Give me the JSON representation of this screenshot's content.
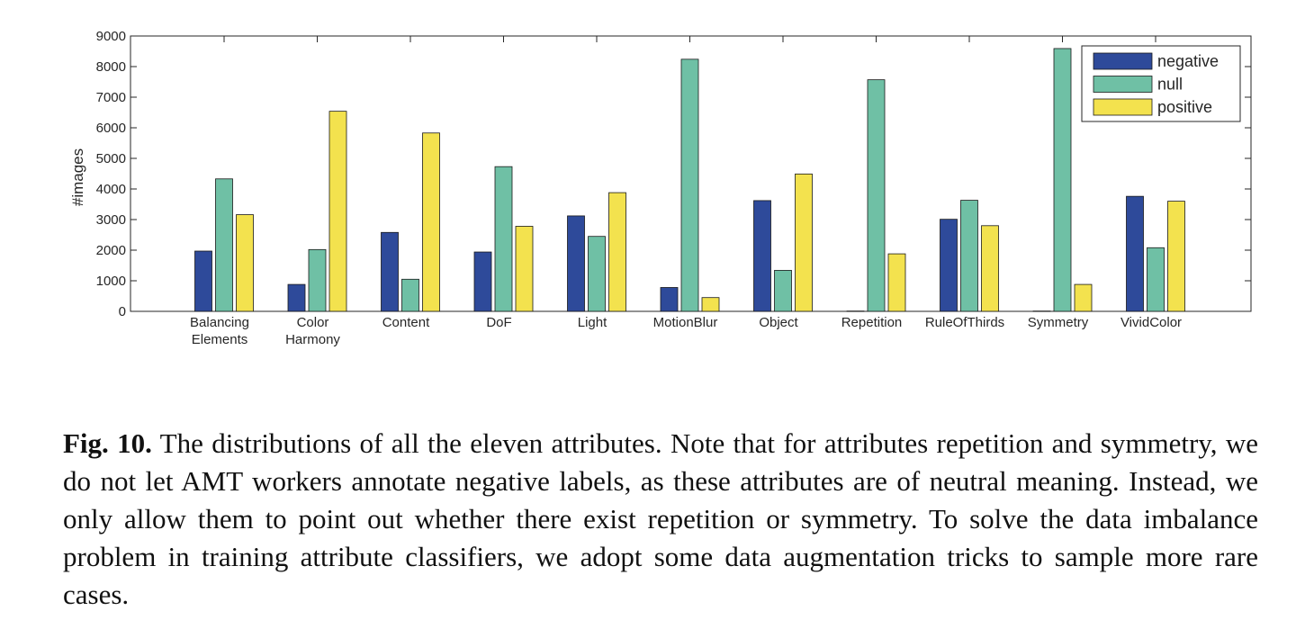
{
  "chart_data": {
    "type": "bar",
    "categories": [
      [
        "Balancing",
        "Elements"
      ],
      [
        "Color",
        "Harmony"
      ],
      [
        "Content"
      ],
      [
        "DoF"
      ],
      [
        "Light"
      ],
      [
        "MotionBlur"
      ],
      [
        "Object"
      ],
      [
        "Repetition"
      ],
      [
        "RuleOfThirds"
      ],
      [
        "Symmetry"
      ],
      [
        "VividColor"
      ]
    ],
    "series": [
      {
        "name": "negative",
        "color": "#2e4a9a",
        "values": [
          1970,
          880,
          2580,
          1940,
          3120,
          780,
          3620,
          10,
          3010,
          10,
          3760
        ]
      },
      {
        "name": "null",
        "color": "#6fc0a5",
        "values": [
          4330,
          2020,
          1050,
          4730,
          2450,
          8240,
          1340,
          7570,
          3630,
          8590,
          2080
        ]
      },
      {
        "name": "positive",
        "color": "#f3e24e",
        "values": [
          3160,
          6540,
          5830,
          2780,
          3880,
          450,
          4490,
          1880,
          2800,
          880,
          3600
        ]
      }
    ],
    "xlabel": "",
    "ylabel": "#images",
    "ylim": [
      0,
      9000
    ],
    "yticks": [
      "0",
      "1000",
      "2000",
      "3000",
      "4000",
      "5000",
      "6000",
      "7000",
      "8000",
      "9000"
    ],
    "legend_position": "top-right",
    "grid": false
  },
  "caption": {
    "label": "Fig. 10.",
    "text": " The distributions of all the eleven attributes. Note that for attributes repetition and symmetry, we do not let AMT workers annotate negative labels, as these attributes are of neutral meaning. Instead, we only allow them to point out whether there exist repetition or symmetry. To solve the data imbalance problem in training attribute classifiers, we adopt some data augmentation tricks to sample more rare cases."
  }
}
